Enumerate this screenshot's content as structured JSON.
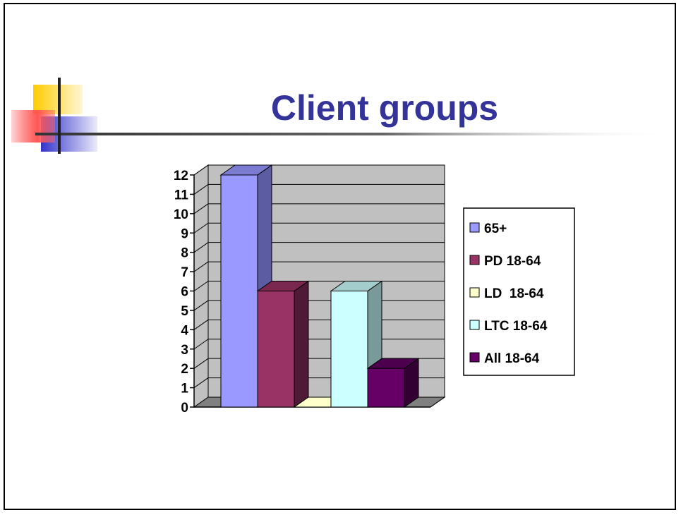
{
  "slide": {
    "title": "Client groups"
  },
  "colors": {
    "title": "#333399",
    "wall": "#c0c0c0",
    "floor": "#808080"
  },
  "chart_data": {
    "type": "bar",
    "title": "",
    "xlabel": "",
    "ylabel": "",
    "ylim": [
      0,
      12
    ],
    "yticks": [
      "0",
      "1",
      "2",
      "3",
      "4",
      "5",
      "6",
      "7",
      "8",
      "9",
      "10",
      "11",
      "12"
    ],
    "grid": true,
    "legend_position": "right",
    "series": [
      {
        "name": "65+",
        "values": [
          12
        ],
        "color": "#9999ff",
        "side": "#5c5ca3",
        "top": "#7b7bd1"
      },
      {
        "name": "PD 18-64",
        "values": [
          6
        ],
        "color": "#993366",
        "side": "#4f1a35",
        "top": "#7a284f"
      },
      {
        "name": "LD  18-64",
        "values": [
          0
        ],
        "color": "#ffffcc",
        "side": "#a3a37a",
        "top": "#c8c89a"
      },
      {
        "name": "LTC 18-64",
        "values": [
          6
        ],
        "color": "#ccffff",
        "side": "#7a9999",
        "top": "#a3cccc"
      },
      {
        "name": "All 18-64",
        "values": [
          2
        ],
        "color": "#660066",
        "side": "#330033",
        "top": "#4d004d"
      }
    ]
  }
}
